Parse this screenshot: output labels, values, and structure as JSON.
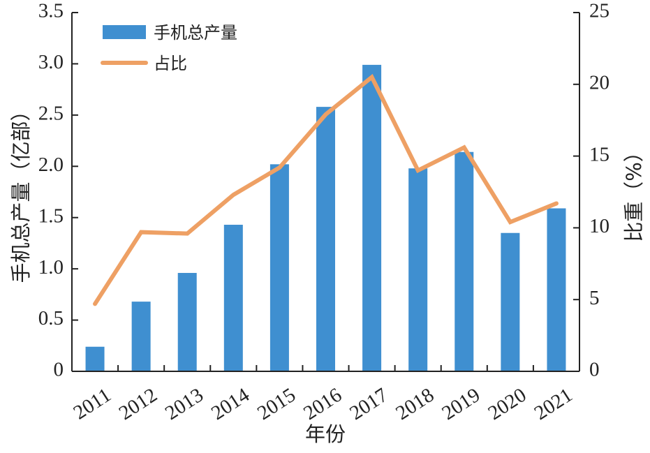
{
  "chart_data": {
    "type": "bar",
    "categories": [
      "2011",
      "2012",
      "2013",
      "2014",
      "2015",
      "2016",
      "2017",
      "2018",
      "2019",
      "2020",
      "2021"
    ],
    "series": [
      {
        "name": "手机总产量",
        "type": "bar",
        "axis": "left",
        "values": [
          0.24,
          0.68,
          0.96,
          1.43,
          2.02,
          2.58,
          2.99,
          1.98,
          2.14,
          1.35,
          1.59
        ],
        "color": "#3f8fd0"
      },
      {
        "name": "占比",
        "type": "line",
        "axis": "right",
        "values": [
          4.7,
          9.7,
          9.6,
          12.3,
          14.2,
          17.9,
          20.5,
          14.0,
          15.6,
          10.4,
          11.7
        ],
        "color": "#eea064"
      }
    ],
    "ylabel": "手机总产量（亿部）",
    "y2label": "比重（%）",
    "xlabel": "年份",
    "ylim": [
      0,
      3.5
    ],
    "y2lim": [
      0,
      25
    ],
    "yticks": [
      "0",
      "0.5",
      "1.0",
      "1.5",
      "2.0",
      "2.5",
      "3.0",
      "3.5"
    ],
    "y2ticks": [
      "0",
      "5",
      "10",
      "15",
      "20",
      "25"
    ],
    "legend_position": "top-left",
    "grid": false
  }
}
